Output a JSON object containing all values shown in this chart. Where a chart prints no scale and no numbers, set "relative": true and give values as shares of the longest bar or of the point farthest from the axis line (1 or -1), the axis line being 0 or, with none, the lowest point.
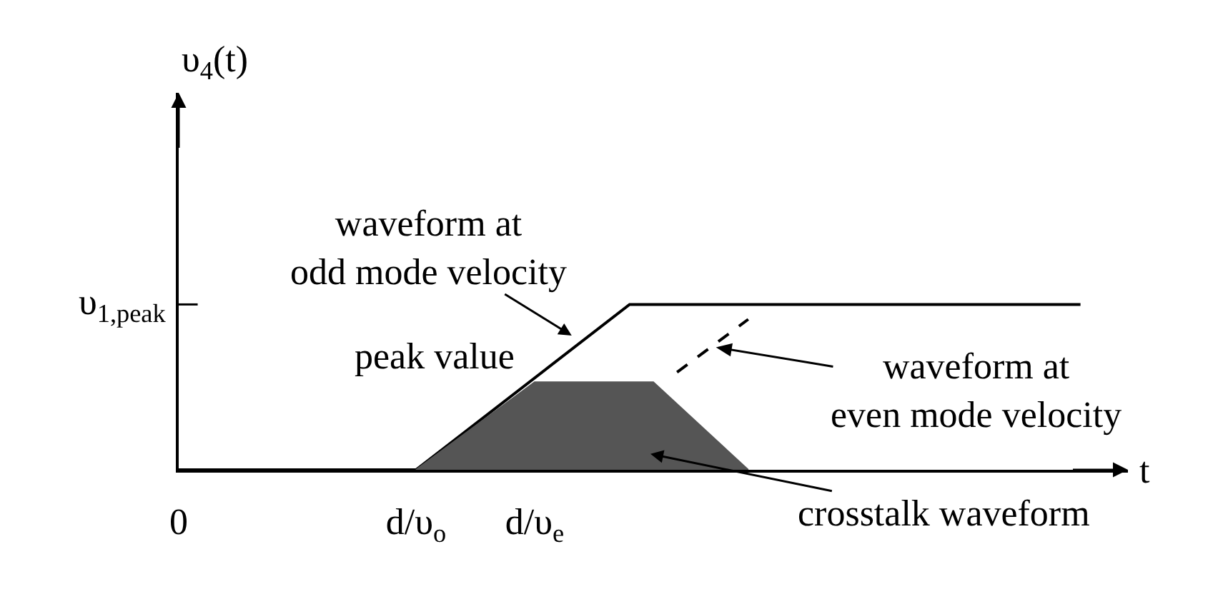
{
  "chart_data": {
    "type": "line",
    "relative": true,
    "xlabel": "t",
    "categories": [
      "0",
      null,
      null,
      null,
      null,
      null,
      null,
      null,
      null,
      null,
      "d/υ$_{o}$",
      null,
      null,
      null,
      null,
      "d/υ$_{e}$",
      null,
      null,
      null,
      null,
      null,
      null,
      null,
      null,
      null,
      null,
      null,
      null,
      null,
      null,
      null,
      null,
      null,
      null,
      null,
      null,
      null,
      null,
      null,
      null,
      null
    ],
    "series": [
      {
        "color": "#000000",
        "line_style": "solid",
        "values": [
          0,
          null,
          null,
          null,
          null,
          null,
          null,
          null,
          null,
          null,
          0,
          null,
          null,
          null,
          null,
          null,
          null,
          null,
          null,
          1,
          null,
          null,
          null,
          null,
          null,
          null,
          null,
          null,
          null,
          null,
          null,
          null,
          null,
          null,
          null,
          null,
          null,
          null,
          1,
          null,
          null
        ]
      },
      {
        "color": "#000000",
        "line_style": "dashed",
        "values": [
          null,
          null,
          null,
          null,
          null,
          null,
          null,
          null,
          null,
          null,
          null,
          null,
          null,
          null,
          null,
          null,
          null,
          null,
          null,
          null,
          null,
          0.59,
          null,
          null,
          0.91,
          null,
          null,
          null,
          null,
          null,
          null,
          null,
          null,
          null,
          null,
          null,
          null,
          null,
          null,
          null,
          null
        ]
      },
      {
        "type": "area",
        "color": "#555555",
        "values": [
          null,
          null,
          null,
          null,
          null,
          null,
          null,
          null,
          null,
          null,
          0,
          null,
          null,
          null,
          null,
          0.53,
          null,
          null,
          null,
          null,
          0.53,
          null,
          null,
          null,
          0,
          null,
          null,
          null,
          null,
          null,
          null,
          null,
          null,
          null,
          null,
          null,
          null,
          null,
          null,
          null,
          null
        ]
      }
    ],
    "annotations": [
      "υ$_{1,peak}$",
      "waveform at\nodd mode velocity",
      "peak value",
      "waveform at\neven mode velocity",
      "crosstalk waveform",
      "υ$_{4}$(t)"
    ],
    "grid": false,
    "marker": "none"
  }
}
